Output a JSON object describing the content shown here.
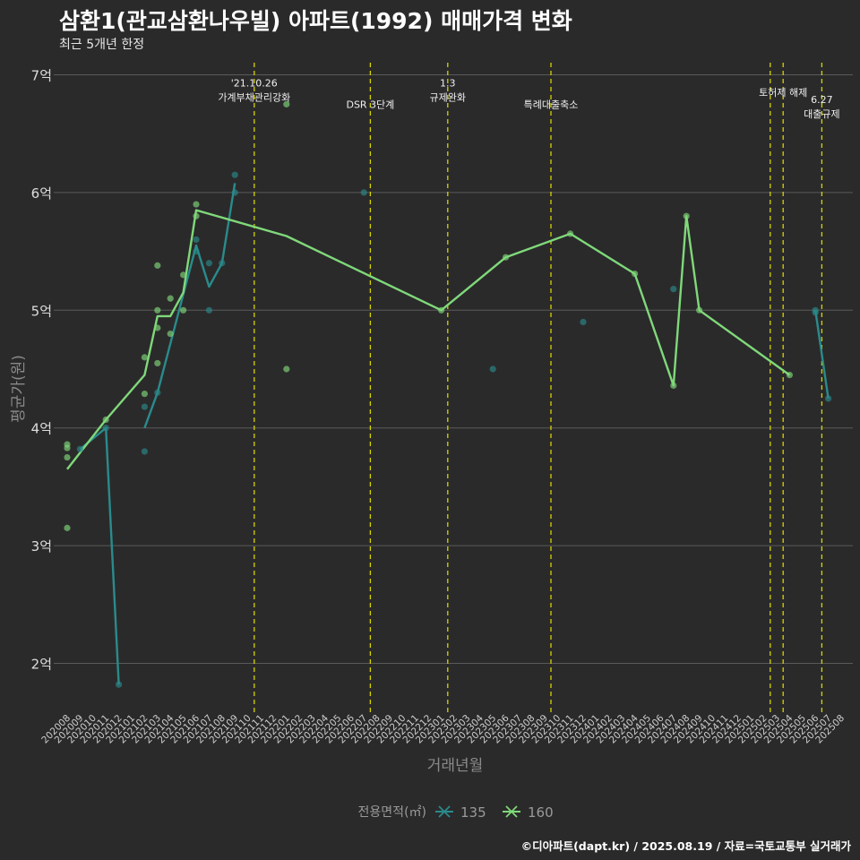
{
  "header": {
    "title": "삼환1(관교삼환나우빌) 아파트(1992) 매매가격 변화",
    "subtitle": "최근 5개년 한정",
    "caption": "©디아파트(dapt.kr) / 2025.08.19 / 자료=국토교통부 실거래가"
  },
  "colors": {
    "background": "#2b2a2b",
    "grid": "#5a5a5a",
    "vline": "#d4d400",
    "s135": "#2a8b8b",
    "s160": "#7fd97a"
  },
  "chart_data": {
    "type": "line",
    "title": "삼환1(관교삼환나우빌) 아파트(1992) 매매가격 변화",
    "subtitle": "최근 5개년 한정",
    "xlabel": "거래년월",
    "ylabel": "평균가(원)",
    "ylim": [
      1.6,
      7.1
    ],
    "yticks": [
      2,
      3,
      4,
      5,
      6,
      7
    ],
    "ytick_labels": [
      "2억",
      "3억",
      "4억",
      "5억",
      "6억",
      "7억"
    ],
    "categories": [
      "202008",
      "202009",
      "202010",
      "202011",
      "202012",
      "202101",
      "202102",
      "202103",
      "202104",
      "202105",
      "202106",
      "202107",
      "202108",
      "202109",
      "202110",
      "202111",
      "202112",
      "202201",
      "202202",
      "202203",
      "202204",
      "202205",
      "202206",
      "202207",
      "202208",
      "202209",
      "202210",
      "202211",
      "202212",
      "202301",
      "202302",
      "202303",
      "202304",
      "202305",
      "202306",
      "202307",
      "202308",
      "202309",
      "202310",
      "202311",
      "202312",
      "202401",
      "202402",
      "202403",
      "202404",
      "202405",
      "202406",
      "202407",
      "202408",
      "202409",
      "202410",
      "202411",
      "202412",
      "202501",
      "202502",
      "202503",
      "202504",
      "202505",
      "202506",
      "202507",
      "202508"
    ],
    "legend": {
      "title": "전용면적(㎡)",
      "entries": [
        "135",
        "160"
      ],
      "position": "bottom"
    },
    "events": [
      {
        "x": 14.5,
        "label": "'21.10.26\n가계부채관리강화",
        "ylabel": 6.9
      },
      {
        "x": 23.5,
        "label": "DSR 3단계",
        "ylabel": 6.72
      },
      {
        "x": 29.5,
        "label": "1.3\n규제완화",
        "ylabel": 6.9
      },
      {
        "x": 37.5,
        "label": "특례대출축소",
        "ylabel": 6.72
      },
      {
        "x": 54.5,
        "label": "",
        "ylabel": 6.82
      },
      {
        "x": 55.5,
        "label": "토허제 해제",
        "ylabel": 6.82
      },
      {
        "x": 58.5,
        "label": "6.27\n대출규제",
        "ylabel": 6.76
      }
    ],
    "series": [
      {
        "name": "135",
        "line": [
          [
            1,
            3.82
          ],
          [
            3,
            4.0
          ],
          [
            4,
            1.82
          ],
          null,
          [
            6,
            4.0
          ],
          [
            7,
            4.3
          ],
          [
            10,
            5.55
          ],
          [
            11,
            5.2
          ],
          [
            12,
            5.4
          ],
          [
            13,
            6.08
          ],
          null,
          [
            58.0,
            5.0
          ],
          [
            59.0,
            4.25
          ]
        ],
        "points": [
          [
            1,
            3.82
          ],
          [
            3,
            4.0
          ],
          [
            4,
            1.82
          ],
          [
            6,
            4.18
          ],
          [
            6,
            3.8
          ],
          [
            7,
            4.3
          ],
          [
            10,
            5.6
          ],
          [
            10,
            5.5
          ],
          [
            11,
            5.4
          ],
          [
            11,
            5.0
          ],
          [
            12,
            5.4
          ],
          [
            13,
            6.15
          ],
          [
            13,
            6.0
          ],
          [
            23,
            6.0
          ],
          [
            33,
            4.5
          ],
          [
            40,
            4.9
          ],
          [
            47,
            5.18
          ],
          [
            58,
            4.98
          ],
          [
            58,
            5.0
          ],
          [
            59,
            4.25
          ]
        ]
      },
      {
        "name": "160",
        "line": [
          [
            0,
            3.65
          ],
          [
            3,
            4.07
          ],
          [
            6,
            4.45
          ],
          [
            7,
            4.95
          ],
          [
            8,
            4.95
          ],
          [
            9,
            5.15
          ],
          [
            10,
            5.85
          ],
          [
            17,
            5.63
          ],
          [
            29,
            5.0
          ],
          [
            34,
            5.45
          ],
          [
            39,
            5.65
          ],
          [
            44,
            5.31
          ],
          [
            47,
            4.36
          ],
          [
            48,
            5.8
          ],
          [
            49,
            5.0
          ],
          [
            56,
            4.45
          ]
        ],
        "points": [
          [
            0,
            3.86
          ],
          [
            0,
            3.83
          ],
          [
            0,
            3.75
          ],
          [
            0,
            3.15
          ],
          [
            3,
            4.07
          ],
          [
            6,
            4.6
          ],
          [
            6,
            4.29
          ],
          [
            7,
            5.38
          ],
          [
            7,
            5.0
          ],
          [
            7,
            4.85
          ],
          [
            7,
            4.55
          ],
          [
            8,
            5.1
          ],
          [
            8,
            4.8
          ],
          [
            9,
            5.3
          ],
          [
            9,
            5.0
          ],
          [
            10,
            5.9
          ],
          [
            10,
            5.8
          ],
          [
            17,
            6.75
          ],
          [
            17,
            4.5
          ],
          [
            29,
            5.0
          ],
          [
            34,
            5.45
          ],
          [
            39,
            5.65
          ],
          [
            44,
            5.31
          ],
          [
            47,
            4.36
          ],
          [
            48,
            5.8
          ],
          [
            49,
            5.0
          ],
          [
            56,
            4.45
          ]
        ]
      }
    ]
  }
}
